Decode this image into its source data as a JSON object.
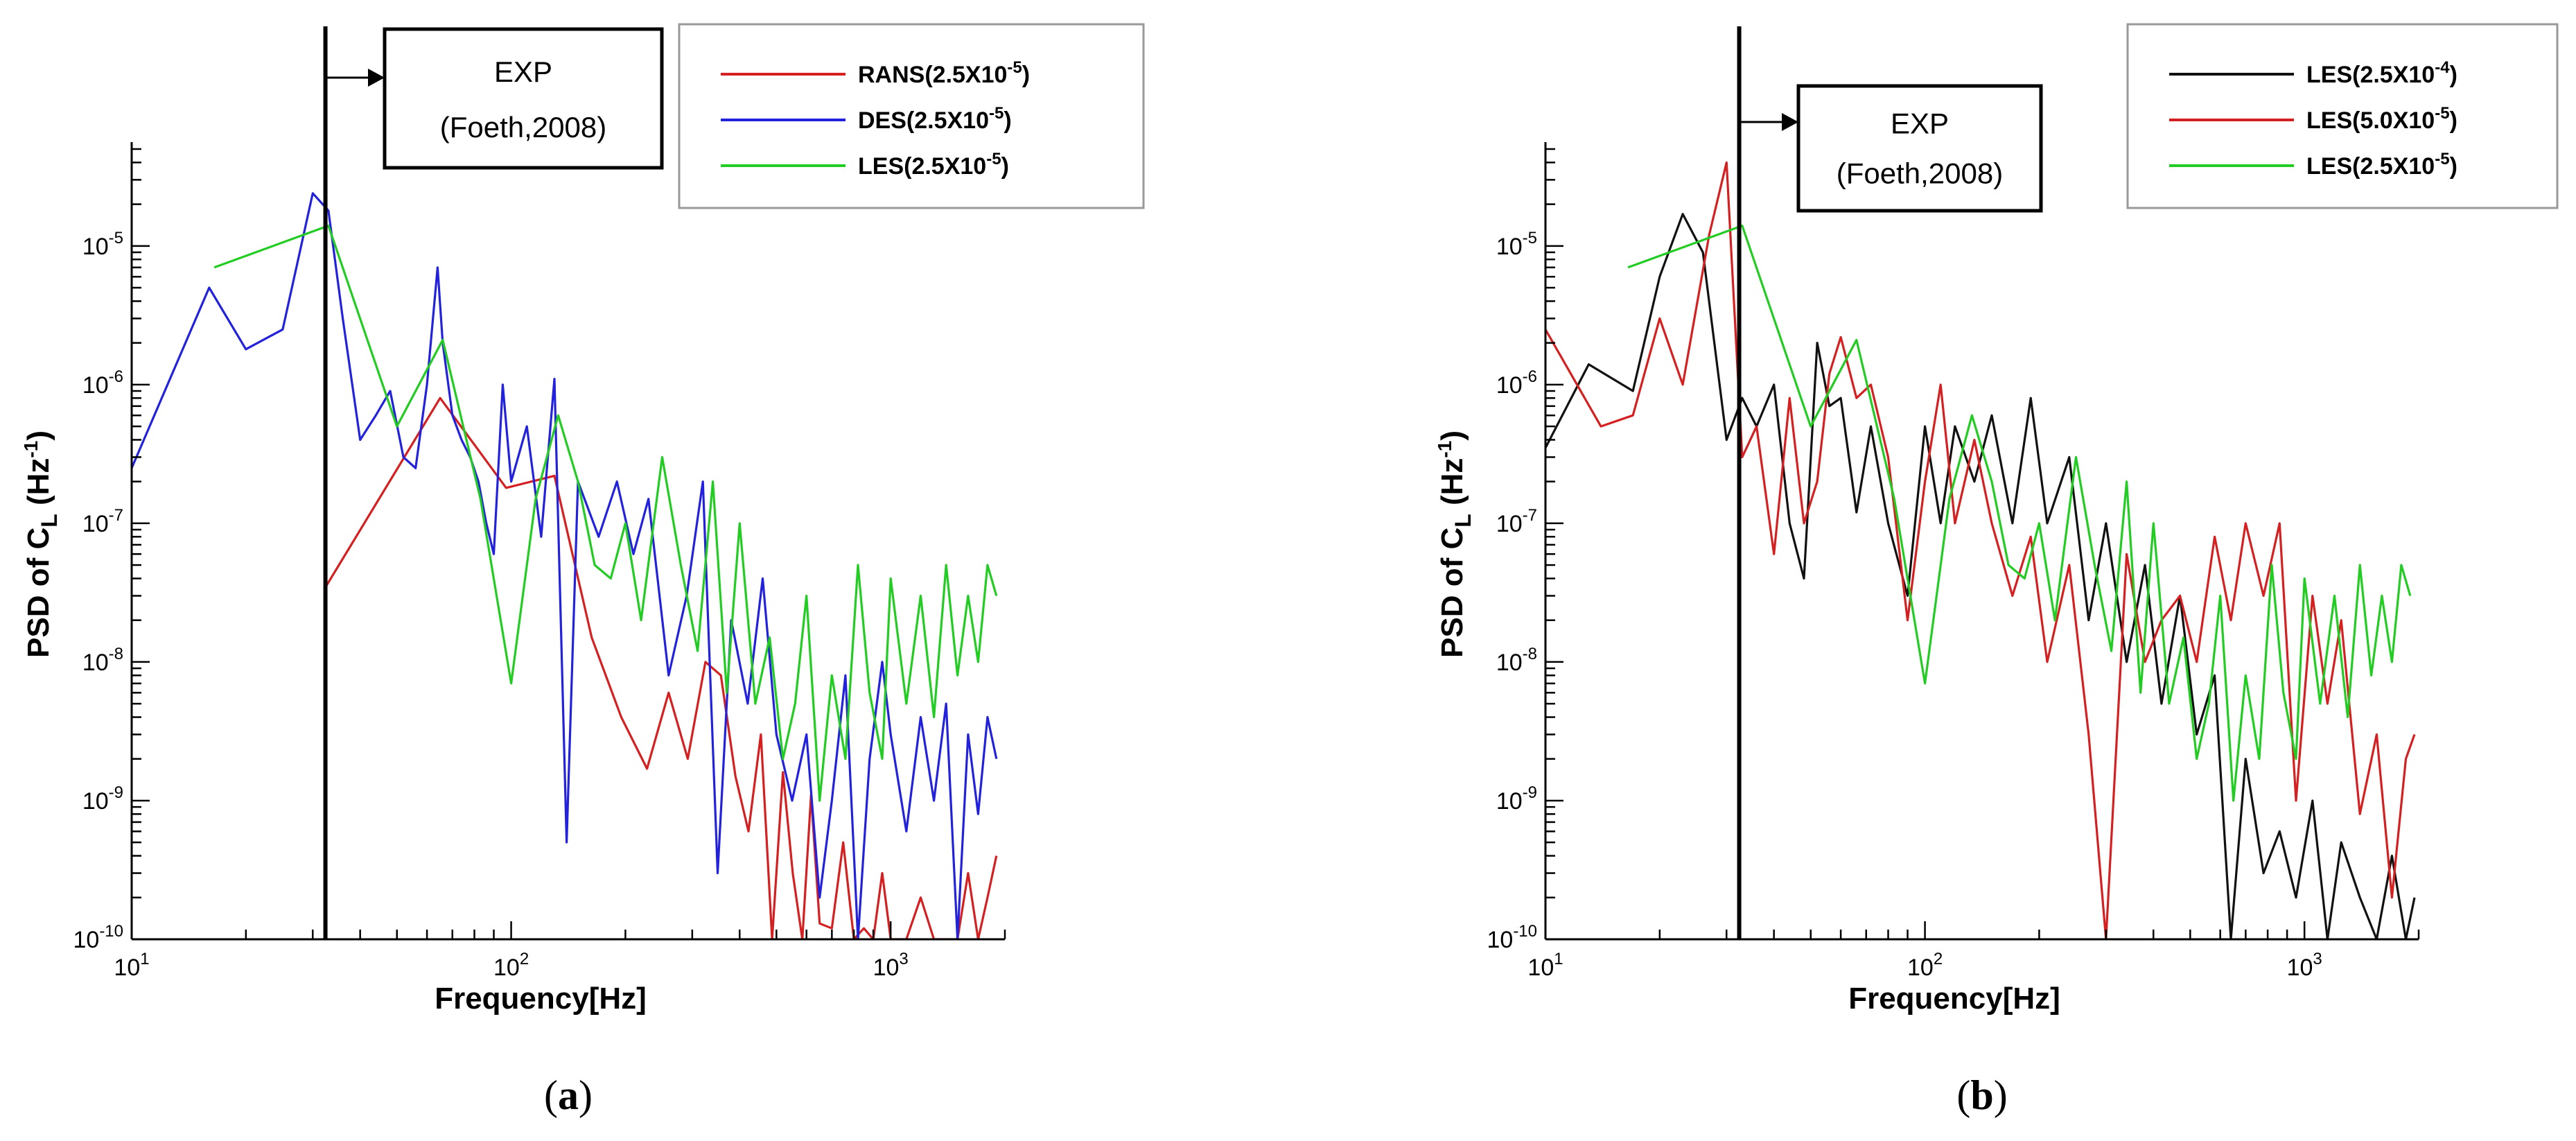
{
  "chart_data": [
    {
      "type": "line",
      "panel_caption": "(a)",
      "panel_letter": "a",
      "xlabel": "Frequency[Hz]",
      "ylabel": "PSD of C_L (Hz^-1)",
      "xscale": "log",
      "yscale": "log",
      "xlim": [
        10,
        2000
      ],
      "ylim": [
        1e-10,
        5e-05
      ],
      "x_ticks": [
        {
          "value": 10,
          "mantissa": "10",
          "exp": "1"
        },
        {
          "value": 100,
          "mantissa": "10",
          "exp": "2"
        },
        {
          "value": 1000,
          "mantissa": "10",
          "exp": "3"
        }
      ],
      "y_ticks": [
        {
          "value": 1e-10,
          "mantissa": "10",
          "exp": "-10"
        },
        {
          "value": 1e-09,
          "mantissa": "10",
          "exp": "-9"
        },
        {
          "value": 1e-08,
          "mantissa": "10",
          "exp": "-8"
        },
        {
          "value": 1e-07,
          "mantissa": "10",
          "exp": "-7"
        },
        {
          "value": 1e-06,
          "mantissa": "10",
          "exp": "-6"
        },
        {
          "value": 1e-05,
          "mantissa": "10",
          "exp": "-5"
        }
      ],
      "grid": false,
      "legend_position": "top-right",
      "annotation": {
        "line1": "EXP",
        "line2": "(Foeth,2008)",
        "x": 32.4
      },
      "series": [
        {
          "name": "RANS(2.5X10-5)",
          "label_base": "RANS(2.5X10",
          "label_exp": "-5",
          "label_end": ")",
          "color": "#d42020",
          "x": [
            32.5,
            65,
            97,
            130,
            163,
            195,
            228,
            260,
            292,
            325,
            357,
            390,
            422,
            455,
            487,
            520,
            552,
            585,
            617,
            650,
            700,
            750,
            800,
            850,
            900,
            950,
            1000,
            1100,
            1200,
            1300,
            1400,
            1500,
            1600,
            1700,
            1800,
            1900
          ],
          "y": [
            3.5e-08,
            8e-07,
            1.8e-07,
            2.2e-07,
            1.5e-08,
            4e-09,
            1.7e-09,
            6e-09,
            2e-09,
            1e-08,
            8e-09,
            1.5e-09,
            6e-10,
            3e-09,
            1e-10,
            1.6e-09,
            3e-10,
            1e-10,
            1.1e-09,
            1.3e-10,
            1.2e-10,
            5e-10,
            1e-10,
            1.2e-10,
            1e-10,
            3e-10,
            1e-10,
            1e-10,
            2e-10,
            1e-10,
            1e-10,
            1e-10,
            3e-10,
            1e-10,
            2e-10,
            4e-10
          ]
        },
        {
          "name": "DES(2.5X10-5)",
          "label_base": "DES(2.5X10",
          "label_exp": "-5",
          "label_end": ")",
          "color": "#2222dd",
          "x": [
            10,
            16,
            20,
            25,
            30,
            33,
            36,
            40,
            44,
            48,
            52,
            56,
            60,
            64,
            66,
            70,
            74,
            78,
            82,
            86,
            90,
            95,
            100,
            110,
            120,
            130,
            140,
            150,
            170,
            190,
            210,
            230,
            260,
            290,
            320,
            350,
            380,
            420,
            460,
            500,
            550,
            600,
            650,
            700,
            760,
            820,
            880,
            950,
            1000,
            1100,
            1200,
            1300,
            1400,
            1500,
            1600,
            1700,
            1800,
            1900
          ],
          "y": [
            2.5e-07,
            5e-06,
            1.8e-06,
            2.5e-06,
            2.4e-05,
            1.8e-05,
            3e-06,
            4e-07,
            6e-07,
            9e-07,
            3e-07,
            2.5e-07,
            1e-06,
            7e-06,
            2e-06,
            6e-07,
            4e-07,
            3e-07,
            2e-07,
            1e-07,
            6e-08,
            1e-06,
            2e-07,
            5e-07,
            8e-08,
            1.1e-06,
            5e-10,
            2e-07,
            8e-08,
            2e-07,
            6e-08,
            1.5e-07,
            8e-09,
            3e-08,
            2e-07,
            3e-10,
            2e-08,
            5e-09,
            4e-08,
            3e-09,
            1e-09,
            3e-09,
            2e-10,
            1e-09,
            8e-09,
            1e-10,
            2e-09,
            1e-08,
            3e-09,
            6e-10,
            4e-09,
            1e-09,
            5e-09,
            1e-10,
            3e-09,
            8e-10,
            4e-09,
            2e-09
          ]
        },
        {
          "name": "LES(2.5X10-5)",
          "label_base": "LES(2.5X10",
          "label_exp": "-5",
          "label_end": ")",
          "color": "#22cc22",
          "x": [
            16.5,
            33,
            50,
            66,
            83,
            100,
            116,
            133,
            150,
            166,
            183,
            200,
            220,
            250,
            280,
            310,
            340,
            370,
            400,
            440,
            480,
            520,
            560,
            600,
            650,
            700,
            760,
            820,
            880,
            950,
            1000,
            1100,
            1200,
            1300,
            1400,
            1500,
            1600,
            1700,
            1800,
            1900
          ],
          "y": [
            7e-06,
            1.4e-05,
            5e-07,
            2.1e-06,
            1.5e-07,
            7e-09,
            1.5e-07,
            6e-07,
            2e-07,
            5e-08,
            4e-08,
            1e-07,
            2e-08,
            3e-07,
            5e-08,
            1.2e-08,
            2e-07,
            6e-09,
            1e-07,
            5e-09,
            1.5e-08,
            2e-09,
            5e-09,
            3e-08,
            1e-09,
            8e-09,
            2e-09,
            5e-08,
            6e-09,
            2e-09,
            4e-08,
            5e-09,
            3e-08,
            4e-09,
            5e-08,
            8e-09,
            3e-08,
            1e-08,
            5e-08,
            3e-08
          ]
        }
      ]
    },
    {
      "type": "line",
      "panel_caption": "(b)",
      "panel_letter": "b",
      "xlabel": "Frequency[Hz]",
      "ylabel": "PSD of C_L (Hz^-1)",
      "xscale": "log",
      "yscale": "log",
      "xlim": [
        10,
        2000
      ],
      "ylim": [
        1e-10,
        5e-05
      ],
      "x_ticks": [
        {
          "value": 10,
          "mantissa": "10",
          "exp": "1"
        },
        {
          "value": 100,
          "mantissa": "10",
          "exp": "2"
        },
        {
          "value": 1000,
          "mantissa": "10",
          "exp": "3"
        }
      ],
      "y_ticks": [
        {
          "value": 1e-10,
          "mantissa": "10",
          "exp": "-10"
        },
        {
          "value": 1e-09,
          "mantissa": "10",
          "exp": "-9"
        },
        {
          "value": 1e-08,
          "mantissa": "10",
          "exp": "-8"
        },
        {
          "value": 1e-07,
          "mantissa": "10",
          "exp": "-7"
        },
        {
          "value": 1e-06,
          "mantissa": "10",
          "exp": "-6"
        },
        {
          "value": 1e-05,
          "mantissa": "10",
          "exp": "-5"
        }
      ],
      "grid": false,
      "legend_position": "top-right",
      "annotation": {
        "line1": "EXP",
        "line2": "(Foeth,2008)",
        "x": 32.4
      },
      "series": [
        {
          "name": "LES(2.5X10-4)",
          "label_base": "LES(2.5X10",
          "label_exp": "-4",
          "label_end": ")",
          "color": "#111111",
          "x": [
            10,
            13,
            17,
            20,
            23,
            26,
            30,
            33,
            36,
            40,
            44,
            48,
            52,
            56,
            60,
            66,
            72,
            80,
            90,
            100,
            110,
            120,
            135,
            150,
            170,
            190,
            210,
            240,
            270,
            300,
            340,
            380,
            420,
            470,
            520,
            580,
            640,
            700,
            780,
            860,
            950,
            1050,
            1150,
            1250,
            1400,
            1550,
            1700,
            1850,
            1950
          ],
          "y": [
            3.5e-07,
            1.4e-06,
            9e-07,
            6e-06,
            1.7e-05,
            9e-06,
            4e-07,
            8e-07,
            5e-07,
            1e-06,
            1e-07,
            4e-08,
            2e-06,
            7e-07,
            8e-07,
            1.2e-07,
            5e-07,
            1e-07,
            3e-08,
            5e-07,
            1e-07,
            5e-07,
            2e-07,
            6e-07,
            1e-07,
            8e-07,
            1e-07,
            3e-07,
            2e-08,
            1e-07,
            1e-08,
            5e-08,
            5e-09,
            3e-08,
            3e-09,
            8e-09,
            1e-10,
            2e-09,
            3e-10,
            6e-10,
            2e-10,
            1e-09,
            1e-10,
            5e-10,
            2e-10,
            1e-10,
            4e-10,
            1e-10,
            2e-10
          ]
        },
        {
          "name": "LES(5.0X10-5)",
          "label_base": "LES(5.0X10",
          "label_exp": "-5",
          "label_end": ")",
          "color": "#d42020",
          "x": [
            10,
            14,
            17,
            20,
            23,
            27,
            30,
            33,
            36,
            40,
            44,
            48,
            52,
            56,
            60,
            66,
            72,
            80,
            90,
            100,
            110,
            120,
            135,
            150,
            170,
            190,
            210,
            240,
            270,
            300,
            340,
            380,
            420,
            470,
            520,
            580,
            640,
            700,
            780,
            860,
            950,
            1050,
            1150,
            1250,
            1400,
            1550,
            1700,
            1850,
            1950
          ],
          "y": [
            2.5e-06,
            5e-07,
            6e-07,
            3e-06,
            1e-06,
            1.2e-05,
            4e-05,
            3e-07,
            5e-07,
            6e-08,
            8e-07,
            1e-07,
            2e-07,
            1.2e-06,
            2.2e-06,
            8e-07,
            1e-06,
            3e-07,
            2e-08,
            2e-07,
            1e-06,
            1e-07,
            4e-07,
            1e-07,
            3e-08,
            8e-08,
            1e-08,
            5e-08,
            3e-09,
            1e-10,
            6e-08,
            1e-08,
            2e-08,
            3e-08,
            1e-08,
            8e-08,
            2e-08,
            1e-07,
            3e-08,
            1e-07,
            1e-09,
            3e-08,
            5e-09,
            2e-08,
            8e-10,
            3e-09,
            2e-10,
            2e-09,
            3e-09
          ]
        },
        {
          "name": "LES(2.5X10-5)",
          "label_base": "LES(2.5X10",
          "label_exp": "-5",
          "label_end": ")",
          "color": "#22cc22",
          "x": [
            16.5,
            33,
            50,
            66,
            83,
            100,
            116,
            133,
            150,
            166,
            183,
            200,
            220,
            250,
            280,
            310,
            340,
            370,
            400,
            440,
            480,
            520,
            560,
            600,
            650,
            700,
            760,
            820,
            880,
            950,
            1000,
            1100,
            1200,
            1300,
            1400,
            1500,
            1600,
            1700,
            1800,
            1900
          ],
          "y": [
            7e-06,
            1.4e-05,
            5e-07,
            2.1e-06,
            1.5e-07,
            7e-09,
            1.5e-07,
            6e-07,
            2e-07,
            5e-08,
            4e-08,
            1e-07,
            2e-08,
            3e-07,
            5e-08,
            1.2e-08,
            2e-07,
            6e-09,
            1e-07,
            5e-09,
            1.5e-08,
            2e-09,
            5e-09,
            3e-08,
            1e-09,
            8e-09,
            2e-09,
            5e-08,
            6e-09,
            2e-09,
            4e-08,
            5e-09,
            3e-08,
            4e-09,
            5e-08,
            8e-09,
            3e-08,
            1e-08,
            5e-08,
            3e-08
          ]
        }
      ]
    }
  ]
}
